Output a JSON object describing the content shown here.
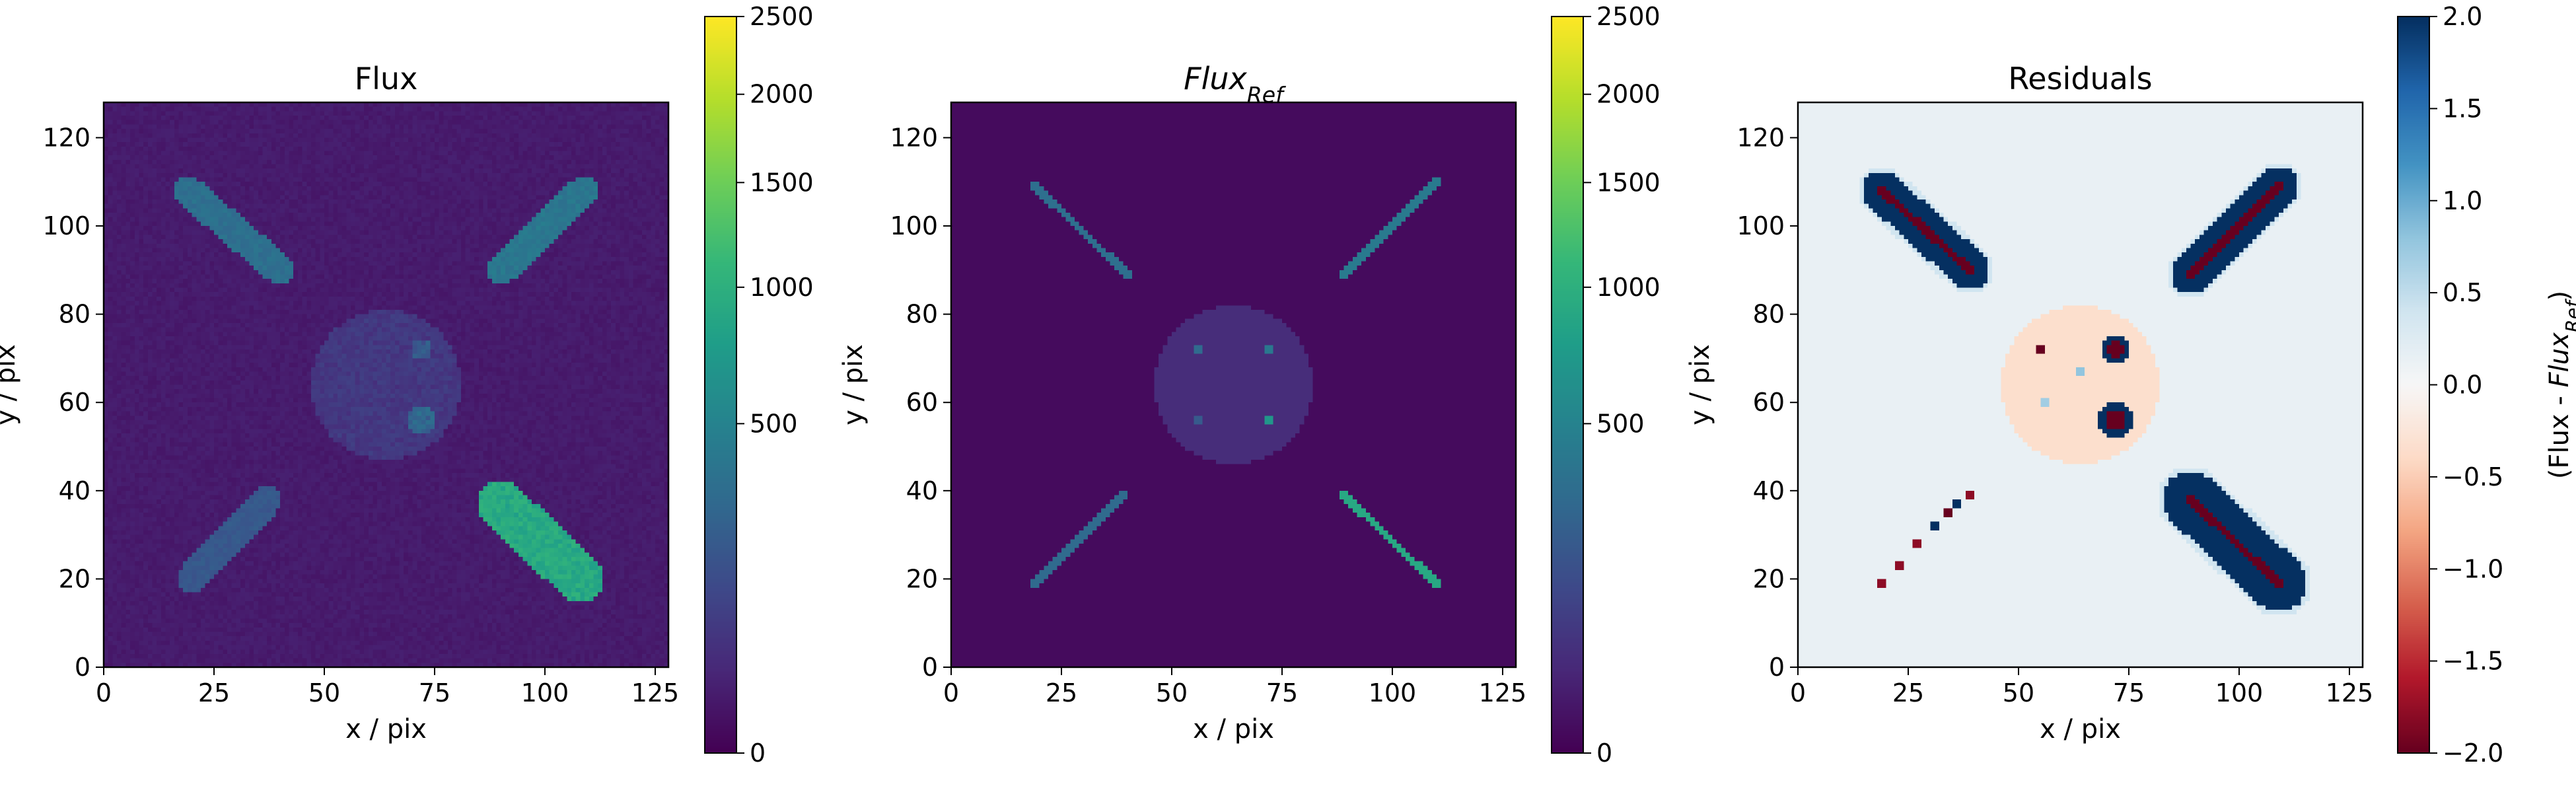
{
  "chart_data": [
    {
      "type": "heatmap",
      "title": "Flux",
      "xlabel": "x / pix",
      "ylabel": "y / pix",
      "xlim": [
        0,
        128
      ],
      "ylim": [
        0,
        128
      ],
      "xticks": [
        0,
        25,
        50,
        75,
        100,
        125
      ],
      "yticks": [
        0,
        20,
        40,
        60,
        80,
        100,
        120
      ],
      "colormap": "viridis",
      "colorbar": {
        "scale": "power",
        "range": [
          0,
          2500
        ],
        "ticks": [
          0,
          500,
          1000,
          1500,
          2000,
          2500
        ],
        "label": ""
      },
      "sources": [
        {
          "shape": "capsule",
          "from": [
            20,
            20
          ],
          "to": [
            37,
            38
          ],
          "level": 180
        },
        {
          "shape": "capsule",
          "from": [
            19,
            108
          ],
          "to": [
            40,
            90
          ],
          "level": 320
        },
        {
          "shape": "capsule",
          "from": [
            90,
            90
          ],
          "to": [
            109,
            108
          ],
          "level": 380
        },
        {
          "shape": "capsule",
          "from": [
            90,
            37
          ],
          "to": [
            108,
            20
          ],
          "level": 900
        },
        {
          "shape": "disk",
          "center": [
            64,
            64
          ],
          "radius": 17,
          "level": 55
        },
        {
          "shape": "disk",
          "center": [
            72,
            72
          ],
          "radius": 2.5,
          "level": 130
        },
        {
          "shape": "disk",
          "center": [
            72,
            56
          ],
          "radius": 3.5,
          "level": 200
        }
      ]
    },
    {
      "type": "heatmap",
      "title": "Flux_Ref",
      "xlabel": "x / pix",
      "ylabel": "y / pix",
      "xlim": [
        0,
        128
      ],
      "ylim": [
        0,
        128
      ],
      "xticks": [
        0,
        25,
        50,
        75,
        100,
        125
      ],
      "yticks": [
        0,
        20,
        40,
        60,
        80,
        100,
        120
      ],
      "colormap": "viridis",
      "colorbar": {
        "scale": "power",
        "range": [
          0,
          2500
        ],
        "ticks": [
          0,
          500,
          1000,
          1500,
          2000,
          2500
        ],
        "label": ""
      },
      "sources": [
        {
          "shape": "line",
          "from": [
            19,
            19
          ],
          "to": [
            39,
            39
          ],
          "level": 300
        },
        {
          "shape": "line",
          "from": [
            19,
            109
          ],
          "to": [
            40,
            89
          ],
          "level": 330
        },
        {
          "shape": "line",
          "from": [
            89,
            89
          ],
          "to": [
            110,
            110
          ],
          "level": 420
        },
        {
          "shape": "line",
          "from": [
            89,
            39
          ],
          "to": [
            110,
            19
          ],
          "level": 900
        },
        {
          "shape": "disk",
          "center": [
            64,
            64
          ],
          "radius": 18,
          "level": 40
        },
        {
          "shape": "point",
          "center": [
            56,
            72
          ],
          "level": 300
        },
        {
          "shape": "point",
          "center": [
            72,
            72
          ],
          "level": 400
        },
        {
          "shape": "point",
          "center": [
            56,
            56
          ],
          "level": 200
        },
        {
          "shape": "point",
          "center": [
            72,
            56
          ],
          "level": 700
        }
      ]
    },
    {
      "type": "heatmap",
      "title": "Residuals",
      "xlabel": "x / pix",
      "ylabel": "y / pix",
      "xlim": [
        0,
        128
      ],
      "ylim": [
        0,
        128
      ],
      "xticks": [
        0,
        25,
        50,
        75,
        100,
        125
      ],
      "yticks": [
        0,
        20,
        40,
        60,
        80,
        100,
        120
      ],
      "colormap": "RdBu",
      "colorbar": {
        "scale": "linear",
        "range": [
          -2.0,
          2.0
        ],
        "ticks": [
          -2.0,
          -1.5,
          -1.0,
          -0.5,
          0.0,
          0.5,
          1.0,
          1.5,
          2.0
        ],
        "tick_labels": [
          "−2.0",
          "−1.5",
          "−1.0",
          "−0.5",
          "0.0",
          "0.5",
          "1.0",
          "1.5",
          "2.0"
        ],
        "label": "(Flux - Flux_Ref)"
      },
      "background_level": 0.15,
      "sources": [
        {
          "shape": "capsule",
          "from": [
            19,
            108
          ],
          "to": [
            39,
            90
          ],
          "radius": 4.5,
          "level": 2.0,
          "core": -2.0
        },
        {
          "shape": "capsule",
          "from": [
            89,
            89
          ],
          "to": [
            109,
            109
          ],
          "radius": 4.5,
          "level": 2.0,
          "core": -2.0
        },
        {
          "shape": "capsule",
          "from": [
            89,
            38
          ],
          "to": [
            109,
            19
          ],
          "radius": 6.5,
          "level": 2.0,
          "core": -2.0
        },
        {
          "shape": "disk",
          "center": [
            64,
            64
          ],
          "radius": 18,
          "level": -0.35
        },
        {
          "shape": "disk",
          "center": [
            72,
            72
          ],
          "radius": 3,
          "level": 2.0,
          "core": -2.0
        },
        {
          "shape": "disk",
          "center": [
            72,
            56
          ],
          "radius": 4,
          "level": 2.0,
          "core": -2.0
        },
        {
          "shape": "blob",
          "center": [
            55,
            72
          ],
          "level": -2.0
        },
        {
          "shape": "blob",
          "center": [
            64,
            67
          ],
          "level": 0.8
        },
        {
          "shape": "blob",
          "center": [
            56,
            60
          ],
          "level": 0.7
        },
        {
          "shape": "blob",
          "center": [
            19,
            19
          ],
          "level": -1.8
        },
        {
          "shape": "blob",
          "center": [
            23,
            23
          ],
          "level": -1.8
        },
        {
          "shape": "blob",
          "center": [
            27,
            28
          ],
          "level": -1.8
        },
        {
          "shape": "blob",
          "center": [
            31,
            32
          ],
          "level": 2.0
        },
        {
          "shape": "blob",
          "center": [
            34,
            35
          ],
          "level": -2.0
        },
        {
          "shape": "blob",
          "center": [
            36,
            37
          ],
          "level": 2.0
        },
        {
          "shape": "blob",
          "center": [
            39,
            39
          ],
          "level": -1.8
        }
      ]
    }
  ]
}
